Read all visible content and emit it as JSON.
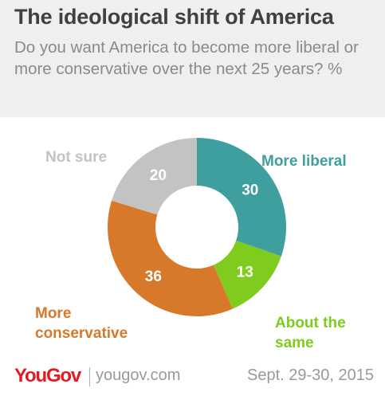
{
  "header": {
    "title": "The ideological shift of America",
    "subtitle": "Do you want America to become more liberal or more conservative over the next 25 years? %"
  },
  "chart_data": {
    "type": "pie",
    "style": "donut",
    "slices": [
      {
        "label": "More liberal",
        "value": 30,
        "color": "#3f9e9e"
      },
      {
        "label": "About the same",
        "value": 13,
        "color": "#7fcc1f"
      },
      {
        "label": "More conservative",
        "value": 36,
        "color": "#d8782a"
      },
      {
        "label": "Not sure",
        "value": 20,
        "color": "#c3c3c3"
      }
    ]
  },
  "footer": {
    "brand": "YouGov",
    "site": "yougov.com",
    "date": "Sept. 29-30, 2015"
  }
}
